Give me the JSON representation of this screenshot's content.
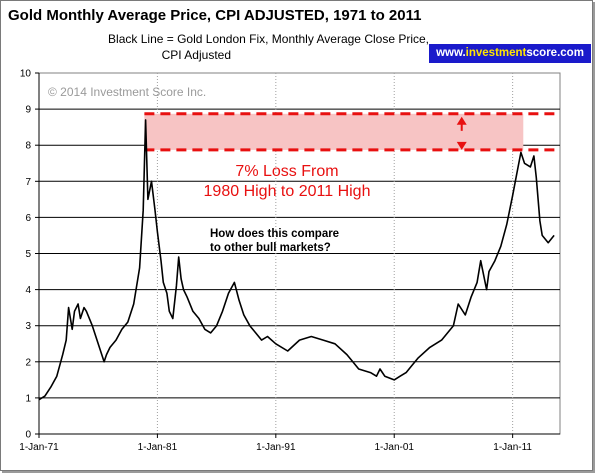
{
  "chart_data": {
    "type": "line",
    "title": "Gold Monthly Average Price, CPI ADJUSTED, 1971 to 2011",
    "subtitle": [
      "Black Line = Gold London Fix, Monthly Average Close Price,",
      "CPI Adjusted"
    ],
    "watermark": "© 2014 Investment Score Inc.",
    "website": {
      "pre": "www.",
      "highlight": "investment",
      "post": "score.com"
    },
    "ylim": [
      0,
      10
    ],
    "yticks": [
      0,
      1,
      2,
      3,
      4,
      5,
      6,
      7,
      8,
      9,
      10
    ],
    "xlim": [
      1971,
      2015
    ],
    "xticks": [
      {
        "x": 1971,
        "label": "1-Jan-71"
      },
      {
        "x": 1981,
        "label": "1-Jan-81"
      },
      {
        "x": 1991,
        "label": "1-Jan-91"
      },
      {
        "x": 2001,
        "label": "1-Jan-01"
      },
      {
        "x": 2011,
        "label": "1-Jan-11"
      }
    ],
    "grid": "horizontal",
    "series": [
      {
        "line_color": "#000000",
        "x": [
          1971.0,
          1971.5,
          1972.0,
          1972.5,
          1973.0,
          1973.3,
          1973.5,
          1973.8,
          1974.0,
          1974.3,
          1974.5,
          1974.8,
          1975.0,
          1975.5,
          1976.0,
          1976.5,
          1976.7,
          1977.0,
          1977.5,
          1978.0,
          1978.5,
          1979.0,
          1979.5,
          1979.8,
          1980.0,
          1980.2,
          1980.5,
          1980.8,
          1981.0,
          1981.3,
          1981.5,
          1981.8,
          1982.0,
          1982.3,
          1982.6,
          1982.8,
          1983.0,
          1983.2,
          1983.5,
          1984.0,
          1984.5,
          1985.0,
          1985.5,
          1986.0,
          1986.5,
          1987.0,
          1987.5,
          1987.9,
          1988.3,
          1988.8,
          1989.3,
          1989.8,
          1990.3,
          1991.0,
          1992.0,
          1993.0,
          1994.0,
          1995.0,
          1996.0,
          1997.0,
          1997.5,
          1998.0,
          1999.0,
          1999.5,
          1999.8,
          2000.2,
          2001.0,
          2001.5,
          2002.0,
          2002.5,
          2003.0,
          2004.0,
          2005.0,
          2006.0,
          2006.4,
          2007.0,
          2007.5,
          2008.0,
          2008.3,
          2008.8,
          2009.0,
          2009.5,
          2010.0,
          2010.5,
          2011.0,
          2011.4,
          2011.7,
          2012.0,
          2012.5,
          2012.8,
          2013.0,
          2013.3,
          2013.5,
          2014.0,
          2014.5
        ],
        "y": [
          0.95,
          1.05,
          1.3,
          1.6,
          2.2,
          2.6,
          3.5,
          2.9,
          3.4,
          3.6,
          3.2,
          3.5,
          3.4,
          3.0,
          2.5,
          2.0,
          2.2,
          2.4,
          2.6,
          2.9,
          3.1,
          3.6,
          4.6,
          6.2,
          8.7,
          6.5,
          7.0,
          6.2,
          5.6,
          4.8,
          4.2,
          3.9,
          3.4,
          3.2,
          4.1,
          4.9,
          4.3,
          4.0,
          3.8,
          3.4,
          3.2,
          2.9,
          2.8,
          3.0,
          3.4,
          3.9,
          4.2,
          3.7,
          3.3,
          3.0,
          2.8,
          2.6,
          2.7,
          2.5,
          2.3,
          2.6,
          2.7,
          2.6,
          2.5,
          2.2,
          2.0,
          1.8,
          1.7,
          1.6,
          1.8,
          1.6,
          1.5,
          1.6,
          1.7,
          1.9,
          2.1,
          2.4,
          2.6,
          3.0,
          3.6,
          3.3,
          3.8,
          4.2,
          4.8,
          4.0,
          4.5,
          4.8,
          5.2,
          5.8,
          6.6,
          7.3,
          7.8,
          7.5,
          7.4,
          7.7,
          7.1,
          5.9,
          5.5,
          5.3,
          5.5
        ]
      }
    ],
    "annotations": {
      "band": {
        "y_high": 8.87,
        "y_low": 7.87,
        "x_from": 1979.9,
        "x_to": 2014.9,
        "x_fill_to": 2011.9,
        "color": "#e81010",
        "fill": "#f7c4c4"
      },
      "arrow": {
        "x": 2006.7,
        "color": "#e81010"
      },
      "loss_text": [
        "7% Loss From",
        "1980 High to 2011 High"
      ],
      "question_text": [
        "How does this compare",
        "to other bull markets?"
      ]
    }
  }
}
